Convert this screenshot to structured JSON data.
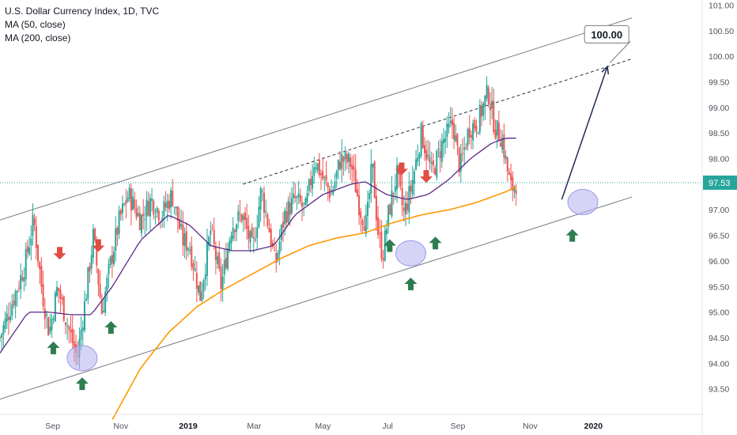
{
  "legend": {
    "title": "U.S. Dollar Currency Index, 1D, TVC",
    "ma50": "MA (50, close)",
    "ma200": "MA (200, close)"
  },
  "colors": {
    "up": "#26a69a",
    "down": "#ef5350",
    "ma50": "#5b2a86",
    "ma200": "#ff9800",
    "channel": "#787b86",
    "arrow_up": "#2e7d4f",
    "arrow_down": "#e04d43",
    "circle": "#b3b0f0",
    "price_line": "#26a69a"
  },
  "chart_data": {
    "type": "candlestick",
    "ylim": [
      93.0,
      101.1
    ],
    "y_ticks": [
      "93.50",
      "94.00",
      "94.50",
      "95.00",
      "95.50",
      "96.00",
      "96.50",
      "97.00",
      "97.50",
      "98.00",
      "98.50",
      "99.00",
      "99.50",
      "100.00",
      "100.50",
      "101.00"
    ],
    "x_ticks": [
      {
        "label": "Sep",
        "t": 0.075,
        "bold": false
      },
      {
        "label": "Nov",
        "t": 0.172,
        "bold": false
      },
      {
        "label": "2019",
        "t": 0.268,
        "bold": true
      },
      {
        "label": "Mar",
        "t": 0.362,
        "bold": false
      },
      {
        "label": "May",
        "t": 0.46,
        "bold": false
      },
      {
        "label": "Jul",
        "t": 0.552,
        "bold": false
      },
      {
        "label": "Sep",
        "t": 0.652,
        "bold": false
      },
      {
        "label": "Nov",
        "t": 0.755,
        "bold": false
      },
      {
        "label": "2020",
        "t": 0.845,
        "bold": true
      }
    ],
    "last_price": "97.53",
    "target_label": "100.00",
    "price_keyframes": [
      [
        0.0,
        94.5
      ],
      [
        0.02,
        95.3
      ],
      [
        0.035,
        95.9
      ],
      [
        0.048,
        96.8
      ],
      [
        0.06,
        95.4
      ],
      [
        0.07,
        94.6
      ],
      [
        0.082,
        95.5
      ],
      [
        0.095,
        94.8
      ],
      [
        0.11,
        94.1
      ],
      [
        0.122,
        95.3
      ],
      [
        0.133,
        96.5
      ],
      [
        0.145,
        95.0
      ],
      [
        0.158,
        96.0
      ],
      [
        0.17,
        96.8
      ],
      [
        0.183,
        97.3
      ],
      [
        0.2,
        96.8
      ],
      [
        0.215,
        97.2
      ],
      [
        0.23,
        96.9
      ],
      [
        0.245,
        97.3
      ],
      [
        0.26,
        96.4
      ],
      [
        0.27,
        96.3
      ],
      [
        0.285,
        95.3
      ],
      [
        0.3,
        96.6
      ],
      [
        0.315,
        95.5
      ],
      [
        0.33,
        96.7
      ],
      [
        0.345,
        96.9
      ],
      [
        0.36,
        96.2
      ],
      [
        0.372,
        97.4
      ],
      [
        0.385,
        96.5
      ],
      [
        0.392,
        95.9
      ],
      [
        0.405,
        96.9
      ],
      [
        0.42,
        97.2
      ],
      [
        0.435,
        97.0
      ],
      [
        0.448,
        98.0
      ],
      [
        0.46,
        97.6
      ],
      [
        0.472,
        97.3
      ],
      [
        0.485,
        98.0
      ],
      [
        0.5,
        97.9
      ],
      [
        0.513,
        97.0
      ],
      [
        0.522,
        96.7
      ],
      [
        0.53,
        97.9
      ],
      [
        0.538,
        96.6
      ],
      [
        0.545,
        96.1
      ],
      [
        0.553,
        96.9
      ],
      [
        0.565,
        97.7
      ],
      [
        0.575,
        96.9
      ],
      [
        0.585,
        97.4
      ],
      [
        0.6,
        98.5
      ],
      [
        0.615,
        97.7
      ],
      [
        0.63,
        98.3
      ],
      [
        0.645,
        98.7
      ],
      [
        0.655,
        97.8
      ],
      [
        0.668,
        98.6
      ],
      [
        0.68,
        98.7
      ],
      [
        0.695,
        99.3
      ],
      [
        0.705,
        98.6
      ],
      [
        0.715,
        98.4
      ],
      [
        0.722,
        97.8
      ],
      [
        0.728,
        97.4
      ],
      [
        0.735,
        97.53
      ]
    ],
    "ma50_keyframes": [
      [
        0.0,
        94.2
      ],
      [
        0.04,
        95.0
      ],
      [
        0.07,
        95.0
      ],
      [
        0.1,
        94.95
      ],
      [
        0.13,
        94.95
      ],
      [
        0.16,
        95.5
      ],
      [
        0.2,
        96.4
      ],
      [
        0.24,
        96.9
      ],
      [
        0.27,
        96.7
      ],
      [
        0.3,
        96.3
      ],
      [
        0.33,
        96.2
      ],
      [
        0.36,
        96.2
      ],
      [
        0.39,
        96.3
      ],
      [
        0.42,
        96.9
      ],
      [
        0.46,
        97.3
      ],
      [
        0.5,
        97.5
      ],
      [
        0.52,
        97.55
      ],
      [
        0.55,
        97.3
      ],
      [
        0.58,
        97.2
      ],
      [
        0.61,
        97.3
      ],
      [
        0.64,
        97.6
      ],
      [
        0.67,
        98.0
      ],
      [
        0.7,
        98.3
      ],
      [
        0.72,
        98.4
      ],
      [
        0.735,
        98.4
      ]
    ],
    "ma200_keyframes": [
      [
        0.16,
        92.9
      ],
      [
        0.2,
        93.9
      ],
      [
        0.24,
        94.6
      ],
      [
        0.28,
        95.1
      ],
      [
        0.32,
        95.45
      ],
      [
        0.36,
        95.75
      ],
      [
        0.4,
        96.05
      ],
      [
        0.44,
        96.3
      ],
      [
        0.48,
        96.45
      ],
      [
        0.52,
        96.55
      ],
      [
        0.56,
        96.75
      ],
      [
        0.6,
        96.9
      ],
      [
        0.64,
        97.0
      ],
      [
        0.68,
        97.15
      ],
      [
        0.72,
        97.35
      ],
      [
        0.735,
        97.45
      ]
    ],
    "channel_upper": [
      [
        0.0,
        96.8
      ],
      [
        0.9,
        100.75
      ]
    ],
    "channel_lower": [
      [
        0.0,
        93.3
      ],
      [
        0.9,
        97.25
      ]
    ],
    "channel_mid_dashed": [
      [
        0.346,
        97.5
      ],
      [
        0.9,
        99.95
      ]
    ],
    "projection_arrow": [
      [
        0.8,
        97.2
      ],
      [
        0.865,
        99.8
      ]
    ],
    "green_arrows": [
      [
        0.076,
        94.3
      ],
      [
        0.117,
        93.6
      ],
      [
        0.158,
        94.7
      ],
      [
        0.555,
        96.3
      ],
      [
        0.585,
        95.55
      ],
      [
        0.62,
        96.35
      ],
      [
        0.815,
        96.5
      ]
    ],
    "red_arrows": [
      [
        0.085,
        96.15
      ],
      [
        0.14,
        96.3
      ],
      [
        0.572,
        97.8
      ],
      [
        0.607,
        97.65
      ]
    ],
    "circles": [
      [
        0.117,
        94.1
      ],
      [
        0.585,
        96.15
      ],
      [
        0.83,
        97.15
      ]
    ]
  }
}
